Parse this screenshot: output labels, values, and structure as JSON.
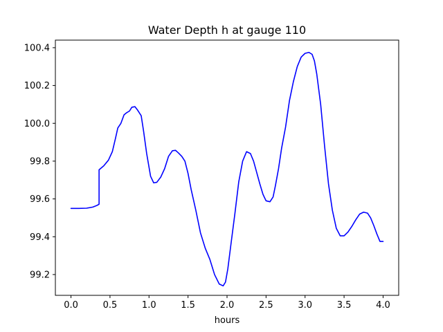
{
  "chart_data": {
    "type": "line",
    "title": "Water Depth h at gauge 110",
    "xlabel": "hours",
    "ylabel": "",
    "xlim": [
      -0.2,
      4.2
    ],
    "ylim": [
      99.09,
      100.44
    ],
    "xticks": [
      0.0,
      0.5,
      1.0,
      1.5,
      2.0,
      2.5,
      3.0,
      3.5,
      4.0
    ],
    "xtick_labels": [
      "0.0",
      "0.5",
      "1.0",
      "1.5",
      "2.0",
      "2.5",
      "3.0",
      "3.5",
      "4.0"
    ],
    "yticks": [
      99.2,
      99.4,
      99.6,
      99.8,
      100.0,
      100.2,
      100.4
    ],
    "ytick_labels": [
      "99.2",
      "99.4",
      "99.6",
      "99.8",
      "100.0",
      "100.2",
      "100.4"
    ],
    "grid": false,
    "legend": "none",
    "series": [
      {
        "color": "#0000ff",
        "x": [
          0.0,
          0.1,
          0.2,
          0.28,
          0.33,
          0.36,
          0.36,
          0.42,
          0.48,
          0.53,
          0.57,
          0.6,
          0.64,
          0.68,
          0.71,
          0.75,
          0.78,
          0.82,
          0.85,
          0.9,
          0.93,
          0.97,
          1.02,
          1.06,
          1.1,
          1.15,
          1.2,
          1.25,
          1.3,
          1.34,
          1.38,
          1.42,
          1.46,
          1.5,
          1.54,
          1.6,
          1.66,
          1.72,
          1.78,
          1.84,
          1.9,
          1.95,
          1.98,
          2.01,
          2.05,
          2.1,
          2.15,
          2.2,
          2.25,
          2.3,
          2.34,
          2.38,
          2.42,
          2.46,
          2.5,
          2.55,
          2.59,
          2.62,
          2.66,
          2.7,
          2.75,
          2.8,
          2.85,
          2.9,
          2.95,
          3.0,
          3.05,
          3.09,
          3.12,
          3.15,
          3.2,
          3.25,
          3.3,
          3.35,
          3.4,
          3.45,
          3.5,
          3.55,
          3.6,
          3.65,
          3.7,
          3.75,
          3.8,
          3.84,
          3.88,
          3.92,
          3.96,
          4.0
        ],
        "y": [
          99.55,
          99.55,
          99.551,
          99.557,
          99.565,
          99.572,
          99.754,
          99.775,
          99.805,
          99.85,
          99.92,
          99.975,
          100.0,
          100.045,
          100.055,
          100.065,
          100.085,
          100.088,
          100.072,
          100.04,
          99.96,
          99.84,
          99.72,
          99.685,
          99.688,
          99.715,
          99.76,
          99.825,
          99.855,
          99.857,
          99.842,
          99.825,
          99.8,
          99.735,
          99.65,
          99.54,
          99.42,
          99.34,
          99.28,
          99.2,
          99.15,
          99.14,
          99.16,
          99.23,
          99.36,
          99.52,
          99.69,
          99.8,
          99.85,
          99.84,
          99.8,
          99.74,
          99.68,
          99.625,
          99.59,
          99.585,
          99.61,
          99.67,
          99.76,
          99.87,
          99.98,
          100.12,
          100.22,
          100.3,
          100.35,
          100.37,
          100.375,
          100.365,
          100.33,
          100.26,
          100.1,
          99.88,
          99.68,
          99.54,
          99.445,
          99.405,
          99.405,
          99.425,
          99.455,
          99.49,
          99.52,
          99.53,
          99.525,
          99.5,
          99.46,
          99.415,
          99.375,
          99.375
        ]
      }
    ]
  }
}
